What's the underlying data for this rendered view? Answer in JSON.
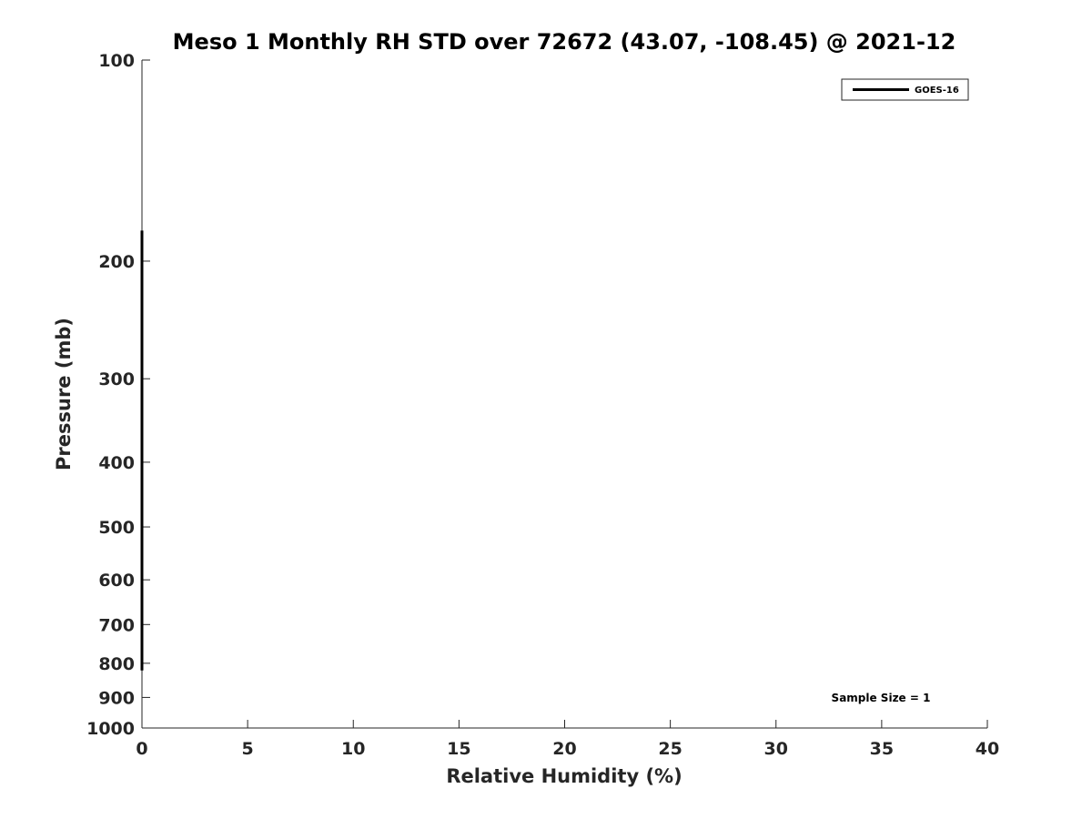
{
  "chart_data": {
    "type": "line",
    "title": "Meso 1 Monthly RH STD over 72672 (43.07, -108.45) @ 2021-12",
    "xlabel": "Relative Humidity (%)",
    "ylabel": "Pressure (mb)",
    "xlim": [
      0,
      40
    ],
    "ylim": [
      1000,
      100
    ],
    "yscale": "log",
    "y_reversed": true,
    "x_ticks": [
      0,
      5,
      10,
      15,
      20,
      25,
      30,
      35,
      40
    ],
    "x_tick_labels": [
      "0",
      "5",
      "10",
      "15",
      "20",
      "25",
      "30",
      "35",
      "40"
    ],
    "y_ticks": [
      100,
      200,
      300,
      400,
      500,
      600,
      700,
      800,
      900,
      1000
    ],
    "y_tick_labels": [
      "100",
      "200",
      "300",
      "400",
      "500",
      "600",
      "700",
      "800",
      "900",
      "1000"
    ],
    "grid": false,
    "legend_position": "top-right",
    "series": [
      {
        "name": "GOES-16",
        "color": "#000000",
        "x": [
          0,
          0
        ],
        "y": [
          180,
          820
        ]
      }
    ],
    "annotations": [
      {
        "text": "Sample Size = 1",
        "position": "bottom-right"
      }
    ]
  }
}
